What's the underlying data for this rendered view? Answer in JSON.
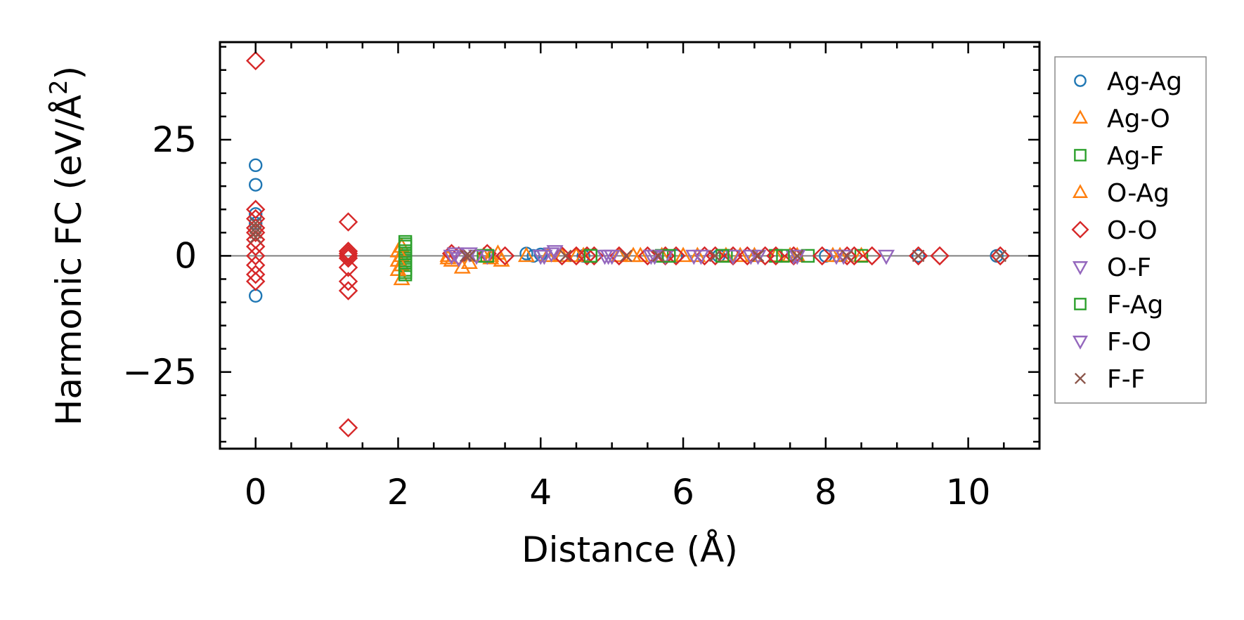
{
  "chart_data": {
    "type": "scatter",
    "title": "",
    "xlabel": "Distance (Å)",
    "ylabel_main": "Harmonic FC (eV/Å",
    "ylabel_sup": "2",
    "ylabel_close": ")",
    "xlim": [
      -0.5,
      11.0
    ],
    "ylim": [
      -41.5,
      46.0
    ],
    "x_ticks": [
      0,
      2,
      4,
      6,
      8,
      10
    ],
    "x_tick_labels": [
      "0",
      "2",
      "4",
      "6",
      "8",
      "10"
    ],
    "y_ticks": [
      -25,
      0,
      25
    ],
    "y_tick_labels": [
      "−25",
      "0",
      "25"
    ],
    "grid": false,
    "zero_line": true,
    "legend_position": "outside-right",
    "series": [
      {
        "name": "Ag-Ag",
        "marker": "circle",
        "color": "#1f77b4",
        "points": [
          [
            0,
            19.5
          ],
          [
            0,
            15.3
          ],
          [
            0,
            9
          ],
          [
            0,
            7
          ],
          [
            0,
            -8.6
          ],
          [
            3.8,
            0.5
          ],
          [
            3.9,
            0
          ],
          [
            4.0,
            0.3
          ],
          [
            4.6,
            0
          ],
          [
            5.9,
            0
          ],
          [
            6.5,
            0
          ],
          [
            7.3,
            0
          ],
          [
            8.0,
            0
          ],
          [
            9.3,
            0
          ],
          [
            10.4,
            0
          ]
        ]
      },
      {
        "name": "Ag-O",
        "marker": "triangle-up",
        "color": "#ff7f0e",
        "points": [
          [
            2.05,
            2
          ],
          [
            2.05,
            0
          ],
          [
            2.05,
            -2
          ],
          [
            2.05,
            -5
          ],
          [
            2.7,
            0
          ],
          [
            2.75,
            -1
          ],
          [
            2.9,
            -2.5
          ],
          [
            3.2,
            0
          ],
          [
            3.3,
            -0.5
          ],
          [
            3.4,
            0.5
          ],
          [
            3.45,
            -1
          ],
          [
            3.8,
            0
          ],
          [
            4.3,
            0
          ],
          [
            4.5,
            0
          ],
          [
            5.1,
            0
          ],
          [
            5.4,
            0
          ],
          [
            5.7,
            0
          ],
          [
            6.2,
            0
          ],
          [
            6.6,
            0
          ],
          [
            7.0,
            0
          ],
          [
            7.3,
            0
          ],
          [
            7.6,
            0
          ],
          [
            8.1,
            0
          ],
          [
            8.5,
            0
          ]
        ]
      },
      {
        "name": "Ag-F",
        "marker": "square",
        "color": "#2ca02c",
        "points": [
          [
            2.1,
            3
          ],
          [
            2.1,
            2
          ],
          [
            2.1,
            1
          ],
          [
            2.1,
            0
          ],
          [
            2.1,
            -1
          ],
          [
            2.1,
            -2
          ],
          [
            2.1,
            -3
          ],
          [
            2.1,
            -4
          ],
          [
            3.2,
            0
          ],
          [
            4.7,
            0
          ],
          [
            5.7,
            0
          ],
          [
            6.6,
            0
          ],
          [
            7.3,
            0
          ],
          [
            7.75,
            0
          ],
          [
            8.5,
            0
          ]
        ]
      },
      {
        "name": "O-Ag",
        "marker": "triangle-up",
        "color": "#ff7f0e",
        "points": [
          [
            2.0,
            1
          ],
          [
            2.0,
            -1
          ],
          [
            2.0,
            -3
          ],
          [
            2.7,
            -0.5
          ],
          [
            3.0,
            -1.5
          ],
          [
            3.3,
            0
          ],
          [
            4.1,
            0
          ],
          [
            4.6,
            0
          ],
          [
            5.3,
            0
          ],
          [
            6.0,
            0
          ],
          [
            6.8,
            0
          ],
          [
            7.5,
            0
          ],
          [
            8.2,
            0
          ]
        ]
      },
      {
        "name": "O-O",
        "marker": "diamond",
        "color": "#d62728",
        "points": [
          [
            0,
            42
          ],
          [
            0,
            10
          ],
          [
            0,
            8
          ],
          [
            0,
            6
          ],
          [
            0,
            5
          ],
          [
            0,
            3.5
          ],
          [
            0,
            2
          ],
          [
            0,
            0
          ],
          [
            0,
            -2
          ],
          [
            0,
            -4
          ],
          [
            0,
            -5.5
          ],
          [
            1.3,
            7.3
          ],
          [
            1.3,
            1
          ],
          [
            1.3,
            0.5
          ],
          [
            1.3,
            0
          ],
          [
            1.3,
            -0.5
          ],
          [
            1.3,
            -2.5
          ],
          [
            1.3,
            -5.5
          ],
          [
            1.3,
            -7.5
          ],
          [
            1.3,
            -37
          ],
          [
            2.75,
            0.5
          ],
          [
            2.85,
            0
          ],
          [
            3.25,
            0.5
          ],
          [
            3.5,
            0
          ],
          [
            4.3,
            0
          ],
          [
            4.5,
            0
          ],
          [
            4.65,
            0
          ],
          [
            4.75,
            0
          ],
          [
            5.1,
            0
          ],
          [
            5.5,
            0
          ],
          [
            5.75,
            0
          ],
          [
            5.9,
            0
          ],
          [
            6.3,
            0
          ],
          [
            6.45,
            0
          ],
          [
            6.7,
            0
          ],
          [
            6.9,
            0
          ],
          [
            7.15,
            0
          ],
          [
            7.3,
            0
          ],
          [
            7.55,
            0
          ],
          [
            7.95,
            0
          ],
          [
            8.3,
            0
          ],
          [
            8.4,
            0
          ],
          [
            8.65,
            0
          ],
          [
            9.3,
            0
          ],
          [
            9.6,
            0
          ],
          [
            10.45,
            0
          ]
        ]
      },
      {
        "name": "O-F",
        "marker": "triangle-down",
        "color": "#9467bd",
        "points": [
          [
            2.75,
            0
          ],
          [
            2.85,
            -0.5
          ],
          [
            3.0,
            0.5
          ],
          [
            3.25,
            0
          ],
          [
            4.0,
            0
          ],
          [
            4.15,
            0.5
          ],
          [
            4.9,
            0
          ],
          [
            5.0,
            0
          ],
          [
            5.55,
            0
          ],
          [
            5.75,
            0
          ],
          [
            6.15,
            0
          ],
          [
            6.7,
            0
          ],
          [
            7.05,
            0
          ],
          [
            7.55,
            0
          ],
          [
            8.15,
            0
          ],
          [
            8.85,
            0
          ]
        ]
      },
      {
        "name": "F-Ag",
        "marker": "square",
        "color": "#2ca02c",
        "points": [
          [
            2.1,
            2.5
          ],
          [
            2.1,
            0.5
          ],
          [
            2.1,
            -1.5
          ],
          [
            2.1,
            -3.5
          ],
          [
            3.25,
            0
          ],
          [
            4.7,
            0
          ],
          [
            5.8,
            0
          ],
          [
            6.55,
            0
          ],
          [
            7.4,
            0
          ]
        ]
      },
      {
        "name": "F-O",
        "marker": "triangle-down",
        "color": "#9467bd",
        "points": [
          [
            2.8,
            0.5
          ],
          [
            3.1,
            0
          ],
          [
            4.05,
            0
          ],
          [
            4.2,
            1
          ],
          [
            4.95,
            0
          ],
          [
            5.6,
            0
          ],
          [
            6.25,
            0
          ],
          [
            6.95,
            0
          ],
          [
            7.6,
            0
          ],
          [
            8.25,
            0
          ]
        ]
      },
      {
        "name": "F-F",
        "marker": "x",
        "color": "#8c564b",
        "points": [
          [
            0,
            7
          ],
          [
            0,
            6
          ],
          [
            0,
            5
          ],
          [
            0,
            4
          ],
          [
            2.95,
            0
          ],
          [
            3.0,
            0
          ],
          [
            4.35,
            0
          ],
          [
            5.2,
            0
          ],
          [
            5.65,
            0
          ],
          [
            6.45,
            0
          ],
          [
            7.05,
            0
          ],
          [
            7.6,
            0
          ],
          [
            8.3,
            0
          ],
          [
            9.3,
            0
          ],
          [
            10.45,
            0
          ]
        ]
      }
    ]
  }
}
